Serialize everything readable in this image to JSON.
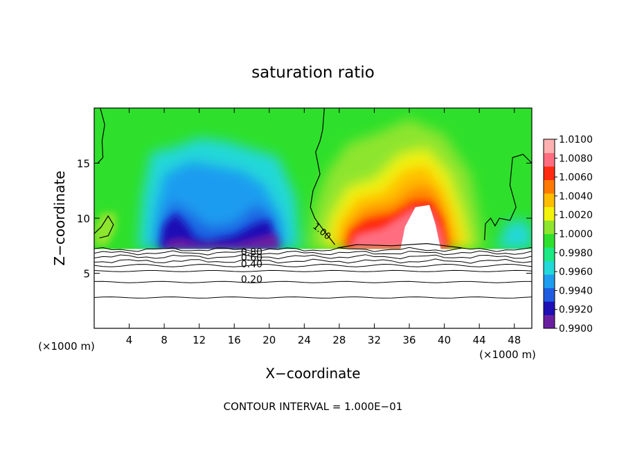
{
  "chart_data": {
    "type": "heatmap",
    "title": "saturation ratio",
    "xlabel": "X−coordinate",
    "ylabel": "Z−coordinate",
    "x_unit_left": "(×1000 m)",
    "x_unit_right": "(×1000 m)",
    "footer": "CONTOUR INTERVAL = 1.000E−01",
    "xlim": [
      0,
      50
    ],
    "ylim": [
      0,
      20
    ],
    "x_ticks": [
      4,
      8,
      12,
      16,
      20,
      24,
      28,
      32,
      36,
      40,
      44,
      48
    ],
    "y_ticks": [
      5,
      10,
      15
    ],
    "surface_height": 7.2,
    "colorbar": {
      "levels": [
        0.99,
        0.992,
        0.994,
        0.996,
        0.998,
        1.0,
        1.002,
        1.004,
        1.006,
        1.008,
        1.01
      ],
      "labels": [
        "1.0100",
        "1.0080",
        "1.0060",
        "1.0040",
        "1.0020",
        "1.0000",
        "0.9980",
        "0.9960",
        "0.9940",
        "0.9920",
        "0.9900"
      ],
      "colors": [
        "#6a1fa0",
        "#1e10b5",
        "#1f5de0",
        "#1e9cf0",
        "#22d8d8",
        "#1de882",
        "#2ee02b",
        "#8ee52d",
        "#f2f20c",
        "#ffbd00",
        "#ff7a00",
        "#ff2a10",
        "#ff6e80",
        "#ffb0b0"
      ]
    },
    "contour_labels": [
      "0.80",
      "0.60",
      "0.40",
      "0.20",
      "1.00"
    ],
    "regions": [
      {
        "label": "blue trough west",
        "x": [
          5,
          22
        ],
        "value_min": 0.9905
      },
      {
        "label": "red peak east",
        "x": [
          27,
          43
        ],
        "value_max": 1.0095
      }
    ],
    "grid": false,
    "legend": "right colorbar"
  }
}
